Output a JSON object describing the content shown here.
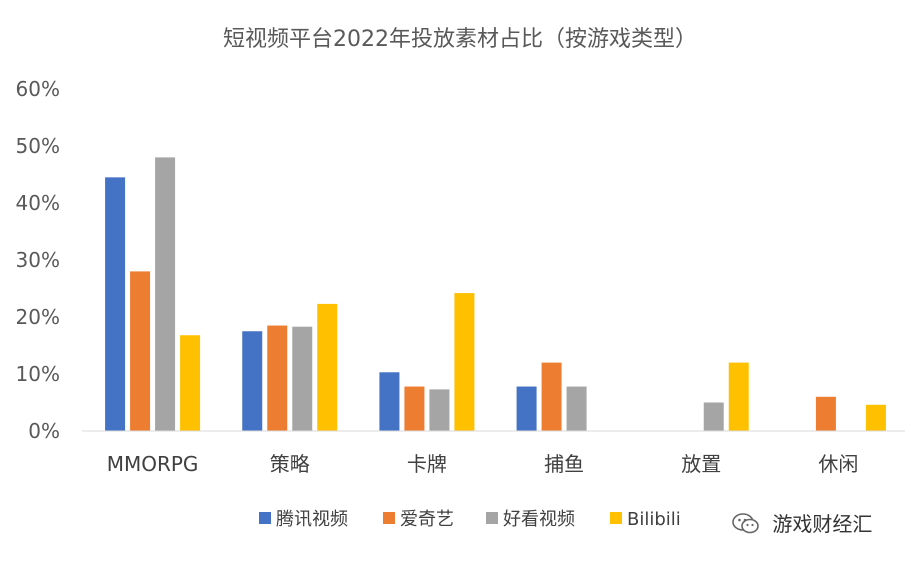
{
  "chart_data": {
    "type": "bar",
    "title": "短视频平台2022年投放素材占比（按游戏类型）",
    "categories": [
      "MMORPG",
      "策略",
      "卡牌",
      "捕鱼",
      "放置",
      "休闲"
    ],
    "series": [
      {
        "name": "腾讯视频",
        "color": "#4472C4",
        "values": [
          44.5,
          17.5,
          10.3,
          7.8,
          0,
          0
        ]
      },
      {
        "name": "爱奇艺",
        "color": "#ED7D31",
        "values": [
          28.0,
          18.5,
          7.8,
          12.0,
          0,
          6.0
        ]
      },
      {
        "name": "好看视频",
        "color": "#A5A5A5",
        "values": [
          48.0,
          18.3,
          7.3,
          7.8,
          5.0,
          0
        ]
      },
      {
        "name": "Bilibili",
        "color": "#FFC000",
        "values": [
          16.8,
          22.3,
          24.2,
          0,
          12.0,
          4.6
        ]
      }
    ],
    "yticks": [
      "0%",
      "10%",
      "20%",
      "30%",
      "40%",
      "50%",
      "60%"
    ],
    "ylim": [
      0,
      60
    ],
    "grid": false,
    "legend_position": "bottom"
  },
  "watermark": {
    "text": "游戏财经汇",
    "icon": "wechat-icon"
  }
}
